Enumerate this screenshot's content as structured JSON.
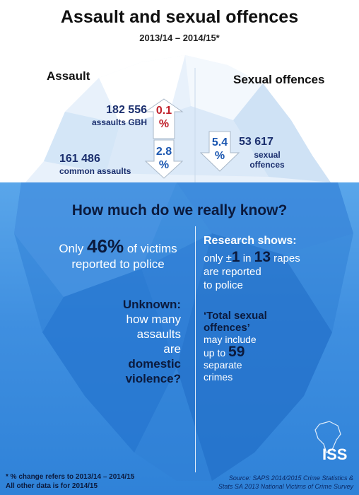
{
  "title": "Assault and sexual offences",
  "period": "2013/14 – 2014/15*",
  "assault": {
    "heading": "Assault",
    "gbh_value": "182 556",
    "gbh_label": "assaults GBH",
    "gbh_change_num": "0.1",
    "gbh_change_unit": "%",
    "gbh_direction": "up",
    "common_value": "161 486",
    "common_label": "common assaults",
    "common_change_num": "2.8",
    "common_change_unit": "%",
    "common_direction": "down"
  },
  "sexual": {
    "heading": "Sexual offences",
    "change_num": "5.4",
    "change_unit": "%",
    "direction": "down",
    "value": "53 617",
    "label_line1": "sexual",
    "label_line2": "offences"
  },
  "question": "How much do we really know?",
  "left": {
    "only": "Only",
    "pct": "46%",
    "of_victims": "of victims",
    "reported": "reported to police",
    "unknown_heading": "Unknown:",
    "unknown_1": "how many",
    "unknown_2": "assaults",
    "unknown_3": "are",
    "unknown_4": "domestic",
    "unknown_5": "violence?"
  },
  "right": {
    "research_heading": "Research shows:",
    "only_pm": "only ±",
    "one": "1",
    "in": "in",
    "thirteen": "13",
    "rapes": "rapes",
    "are_reported": "are reported",
    "to_police": "to police",
    "total_1": "‘Total sexual",
    "total_2": "offences’",
    "may_include": "may include",
    "up_to": "up to",
    "fiftynine": "59",
    "separate": "separate",
    "crimes": "crimes"
  },
  "footnote_1": "* % change refers to 2013/14 – 2014/15",
  "footnote_2": "All other data is for 2014/15",
  "source_1": "Source: SAPS 2014/2015 Crime Statistics &",
  "source_2": "Stats SA 2013 National Victims of Crime Survey",
  "logo_text": "ISS",
  "colors": {
    "red": "#c0202a",
    "blue": "#1a56b0",
    "navy": "#1b2f6e"
  }
}
